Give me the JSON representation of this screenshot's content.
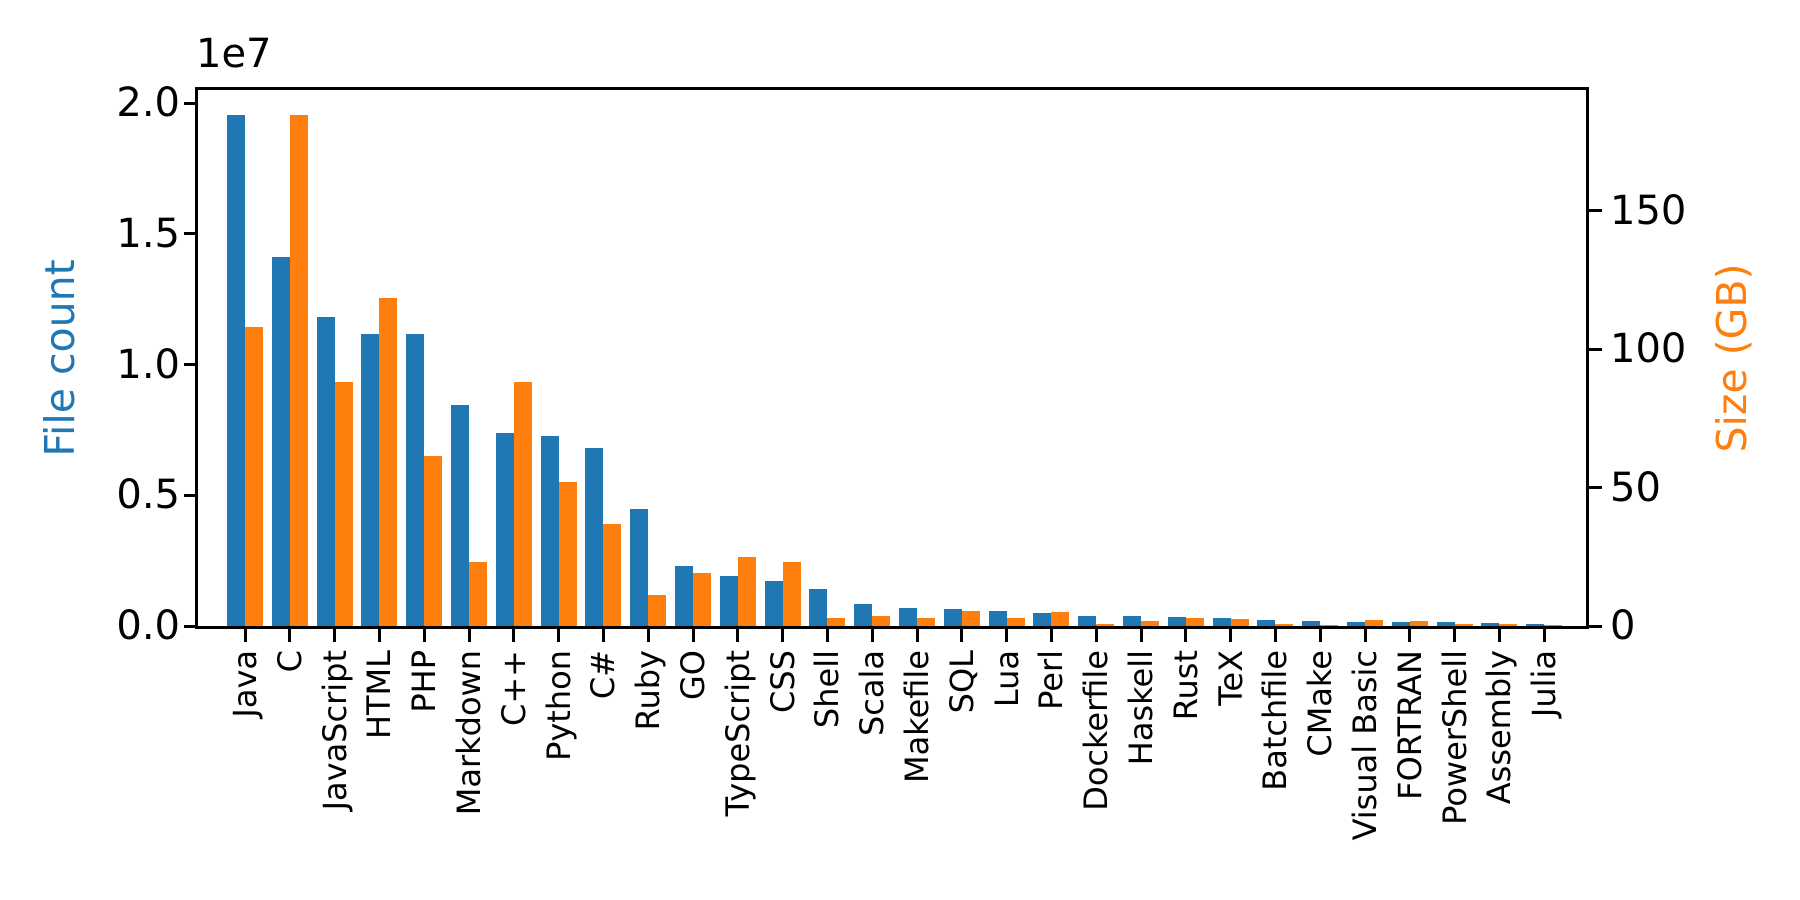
{
  "figure": {
    "background": "#ffffff",
    "offset_text": "1e7"
  },
  "chart_data": {
    "type": "bar",
    "title": "",
    "grid": false,
    "legend": "none",
    "categories": [
      "Java",
      "C",
      "JavaScript",
      "HTML",
      "PHP",
      "Markdown",
      "C++",
      "Python",
      "C#",
      "Ruby",
      "GO",
      "TypeScript",
      "CSS",
      "Shell",
      "Scala",
      "Makefile",
      "SQL",
      "Lua",
      "Perl",
      "Dockerfile",
      "Haskell",
      "Rust",
      "TeX",
      "Batchfile",
      "CMake",
      "Visual Basic",
      "FORTRAN",
      "PowerShell",
      "Assembly",
      "Julia"
    ],
    "series": [
      {
        "name": "File count",
        "axis": "left",
        "color": "#1f77b4",
        "values": [
          19550000,
          14130000,
          11800000,
          11160000,
          11160000,
          8450000,
          7390000,
          7250000,
          6820000,
          4490000,
          2290000,
          1920000,
          1720000,
          1400000,
          830000,
          670000,
          650000,
          580000,
          500000,
          400000,
          370000,
          350000,
          290000,
          240000,
          190000,
          160000,
          145000,
          140000,
          100000,
          70000
        ]
      },
      {
        "name": "Size (GB)",
        "axis": "right",
        "color": "#ff7f0e",
        "values": [
          107.9,
          184.5,
          88.0,
          118.3,
          61.4,
          23.0,
          88.0,
          52.0,
          37.0,
          11.2,
          19.2,
          24.8,
          23.0,
          3.0,
          3.6,
          2.9,
          5.5,
          2.8,
          5.2,
          0.6,
          1.9,
          2.9,
          2.5,
          0.6,
          0.5,
          2.1,
          1.8,
          0.7,
          0.8,
          0.3
        ]
      }
    ],
    "left_axis": {
      "label": "File count",
      "color": "#1f77b4",
      "offset_text": "1e7",
      "range": [
        0,
        20500000
      ],
      "ticks": [
        0,
        5000000,
        10000000,
        15000000,
        20000000
      ],
      "tick_labels": [
        "0.0",
        "0.5",
        "1.0",
        "1.5",
        "2.0"
      ]
    },
    "right_axis": {
      "label": "Size (GB)",
      "color": "#ff7f0e",
      "range": [
        0,
        193.6
      ],
      "ticks": [
        0,
        50,
        100,
        150
      ],
      "tick_labels": [
        "0",
        "50",
        "100",
        "150"
      ]
    },
    "x_axis": {
      "tick_label_rotation": 90
    }
  }
}
